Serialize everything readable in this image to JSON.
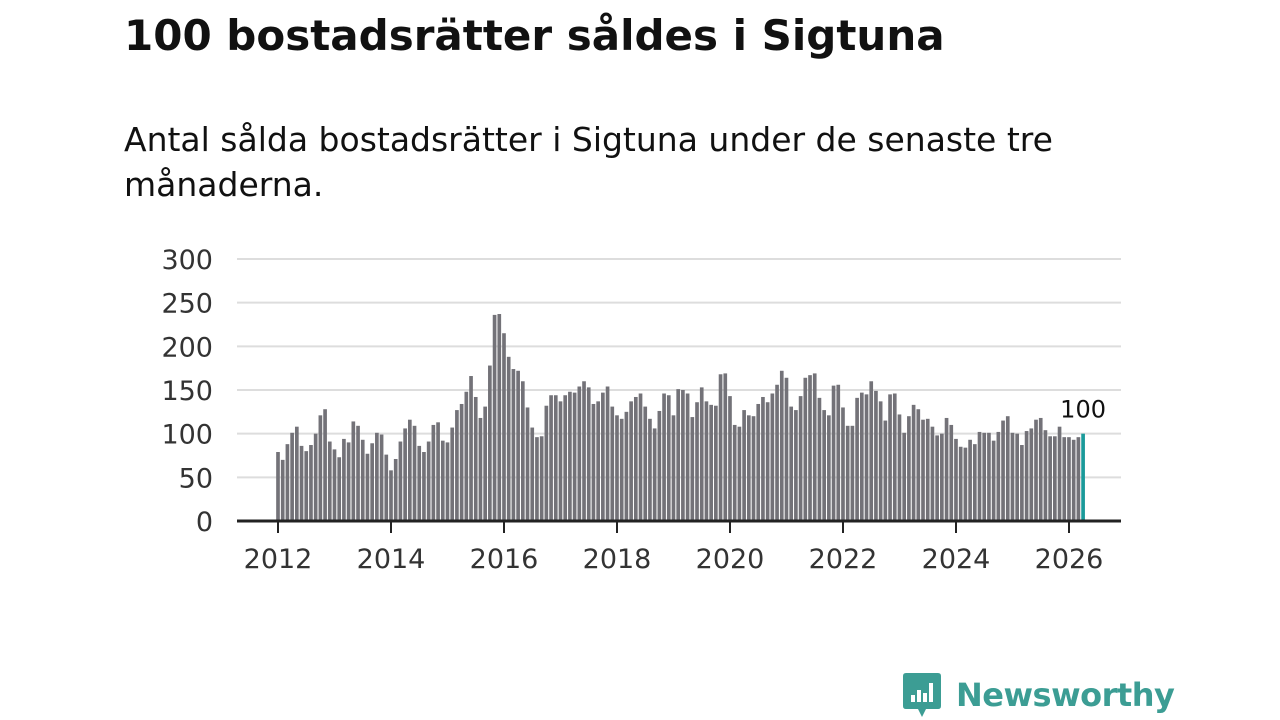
{
  "title": "100 bostadsrätter såldes i Sigtuna",
  "subtitle": "Antal sålda bostadsrätter i Sigtuna under de senaste tre månaderna.",
  "brand": {
    "name": "Newsworthy",
    "color": "#3c9d94",
    "icon": "newsworthy-logo-icon"
  },
  "colors": {
    "bar": "#737278",
    "highlight": "#1a9a9a",
    "grid": "#dddddd",
    "axis": "#222222",
    "text": "#333333"
  },
  "chart_data": {
    "type": "bar",
    "title": "100 bostadsrätter såldes i Sigtuna",
    "xlabel": "",
    "ylabel": "",
    "ylim": [
      0,
      300
    ],
    "yticks": [
      0,
      50,
      100,
      150,
      200,
      250,
      300
    ],
    "xticks": [
      2012,
      2014,
      2016,
      2018,
      2020,
      2022,
      2024,
      2026
    ],
    "x_start": 2012.0,
    "step": 0.08333,
    "grid": true,
    "highlight_last": true,
    "last_label": "100",
    "values": [
      79,
      70,
      88,
      101,
      108,
      86,
      80,
      87,
      100,
      121,
      128,
      91,
      82,
      73,
      94,
      90,
      114,
      109,
      93,
      77,
      89,
      101,
      99,
      76,
      58,
      71,
      91,
      106,
      116,
      109,
      86,
      79,
      91,
      110,
      113,
      92,
      90,
      107,
      127,
      134,
      148,
      166,
      142,
      118,
      131,
      178,
      236,
      237,
      215,
      188,
      174,
      172,
      160,
      130,
      107,
      96,
      97,
      132,
      144,
      144,
      137,
      144,
      148,
      147,
      154,
      160,
      153,
      134,
      137,
      147,
      154,
      131,
      121,
      117,
      125,
      137,
      142,
      146,
      131,
      117,
      106,
      126,
      146,
      144,
      121,
      151,
      150,
      146,
      119,
      136,
      153,
      137,
      133,
      132,
      168,
      169,
      143,
      110,
      108,
      127,
      121,
      120,
      134,
      142,
      136,
      146,
      156,
      172,
      164,
      131,
      127,
      143,
      164,
      167,
      169,
      141,
      127,
      121,
      155,
      156,
      130,
      109,
      109,
      141,
      147,
      145,
      160,
      149,
      137,
      115,
      145,
      146,
      122,
      101,
      120,
      133,
      128,
      116,
      117,
      108,
      98,
      100,
      118,
      110,
      94,
      85,
      84,
      93,
      88,
      102,
      101,
      101,
      92,
      102,
      115,
      120,
      101,
      100,
      87,
      103,
      106,
      116,
      118,
      104,
      97,
      97,
      108,
      96,
      96,
      93,
      96,
      100
    ]
  }
}
